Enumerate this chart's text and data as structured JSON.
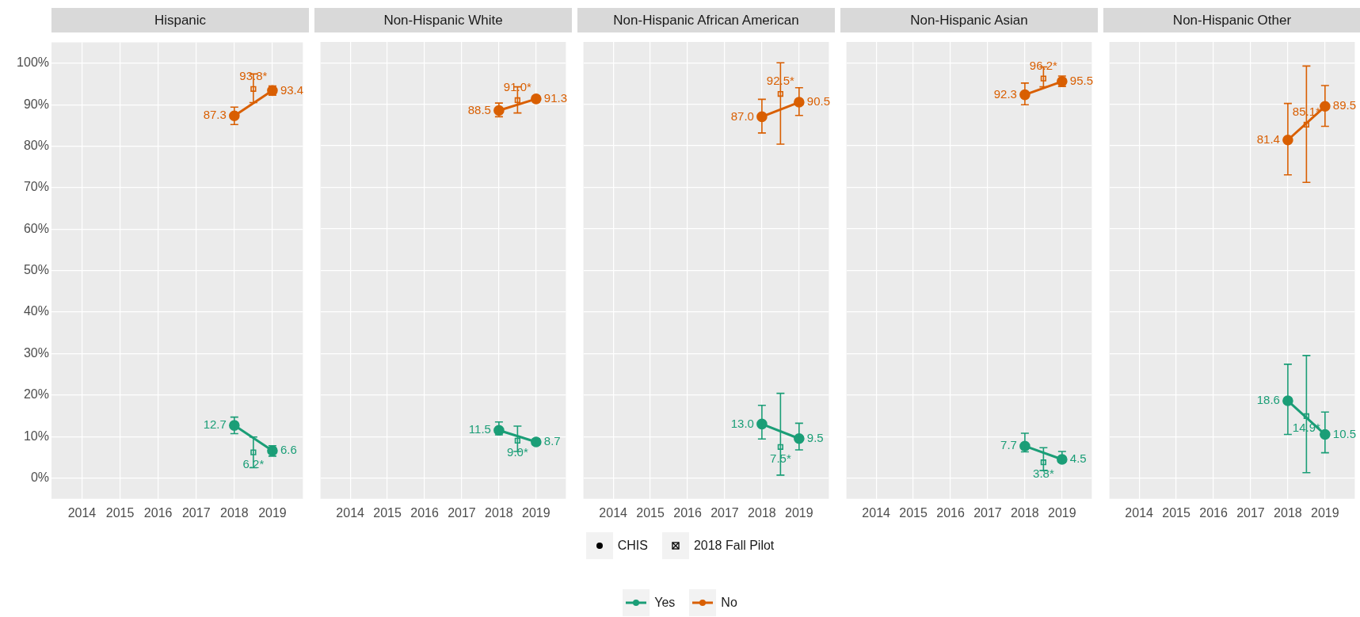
{
  "chart_data": [
    {
      "type": "line",
      "title": "Hispanic",
      "xlim": [
        2013.2,
        2019.8
      ],
      "xticks": [
        2014,
        2015,
        2016,
        2017,
        2018,
        2019
      ],
      "ylim": [
        -5,
        105
      ],
      "yticks": [
        {
          "value": 0,
          "label": "0%"
        },
        {
          "value": 10,
          "label": "10%"
        },
        {
          "value": 20,
          "label": "20%"
        },
        {
          "value": 30,
          "label": "30%"
        },
        {
          "value": 40,
          "label": "40%"
        },
        {
          "value": 50,
          "label": "50%"
        },
        {
          "value": 60,
          "label": "60%"
        },
        {
          "value": 70,
          "label": "70%"
        },
        {
          "value": 80,
          "label": "80%"
        },
        {
          "value": 90,
          "label": "90%"
        },
        {
          "value": 100,
          "label": "100%"
        }
      ],
      "grid": true,
      "marker": "circle",
      "line_style": "solid",
      "legend": "bottom",
      "annotations": [
        "CHIS",
        "2018 Fall Pilot"
      ],
      "series": [
        {
          "name": "Yes",
          "color": "#1b9e77",
          "x": [
            2018,
            2019
          ],
          "values": [
            12.7,
            6.6
          ],
          "errors": [
            [
              10.7,
              14.7
            ],
            [
              5.3,
              7.8
            ]
          ],
          "value_labels": [
            "12.7",
            "6.6"
          ]
        },
        {
          "name": "No",
          "color": "#d95f02",
          "x": [
            2018,
            2019
          ],
          "values": [
            87.3,
            93.4
          ],
          "errors": [
            [
              85.2,
              89.4
            ],
            [
              92.3,
              94.5
            ]
          ],
          "value_labels": [
            "87.3",
            "93.4"
          ]
        },
        {
          "type": "scatter",
          "marker": "square",
          "color": "#1b9e77",
          "x": [
            2018.5
          ],
          "values": [
            6.2
          ],
          "errors": [
            [
              2.5,
              9.9
            ]
          ],
          "value_labels": [
            "6.2*"
          ]
        },
        {
          "type": "scatter",
          "marker": "square",
          "color": "#d95f02",
          "x": [
            2018.5
          ],
          "values": [
            93.8
          ],
          "errors": [
            [
              90.5,
              97.4
            ]
          ],
          "value_labels": [
            "93.8*"
          ]
        }
      ]
    },
    {
      "type": "line",
      "title": "Non-Hispanic White",
      "xlim": [
        2013.2,
        2019.8
      ],
      "xticks": [
        2014,
        2015,
        2016,
        2017,
        2018,
        2019
      ],
      "ylim": [
        -5,
        105
      ],
      "yticks": [
        0,
        10,
        20,
        30,
        40,
        50,
        60,
        70,
        80,
        90,
        100
      ],
      "tick_labels": "x",
      "grid": true,
      "marker": "circle",
      "line_style": "solid",
      "series": [
        {
          "color": "#1b9e77",
          "x": [
            2018,
            2019
          ],
          "values": [
            11.5,
            8.7
          ],
          "errors": [
            [
              10.4,
              13.5
            ],
            [
              8.0,
              9.5
            ]
          ],
          "value_labels": [
            "11.5",
            "8.7"
          ]
        },
        {
          "color": "#d95f02",
          "x": [
            2018,
            2019
          ],
          "values": [
            88.5,
            91.3
          ],
          "errors": [
            [
              87.0,
              90.3
            ],
            [
              90.6,
              92.0
            ]
          ],
          "value_labels": [
            "88.5",
            "91.3"
          ]
        },
        {
          "type": "scatter",
          "marker": "square",
          "color": "#1b9e77",
          "x": [
            2018.5
          ],
          "values": [
            9.0
          ],
          "errors": [
            [
              6.4,
              12.5
            ]
          ],
          "value_labels": [
            "9.0*"
          ]
        },
        {
          "type": "scatter",
          "marker": "square",
          "color": "#d95f02",
          "x": [
            2018.5
          ],
          "values": [
            91.0
          ],
          "errors": [
            [
              87.9,
              94.2
            ]
          ],
          "value_labels": [
            "91.0*"
          ]
        }
      ]
    },
    {
      "type": "line",
      "title": "Non-Hispanic African American",
      "xlim": [
        2013.2,
        2019.8
      ],
      "xticks": [
        2014,
        2015,
        2016,
        2017,
        2018,
        2019
      ],
      "ylim": [
        -5,
        105
      ],
      "yticks": [
        0,
        10,
        20,
        30,
        40,
        50,
        60,
        70,
        80,
        90,
        100
      ],
      "tick_labels": "x",
      "grid": true,
      "marker": "circle",
      "line_style": "solid",
      "series": [
        {
          "color": "#1b9e77",
          "x": [
            2018,
            2019
          ],
          "values": [
            13.0,
            9.5
          ],
          "errors": [
            [
              9.4,
              17.5
            ],
            [
              6.8,
              13.2
            ]
          ],
          "value_labels": [
            "13.0",
            "9.5"
          ]
        },
        {
          "color": "#d95f02",
          "x": [
            2018,
            2019
          ],
          "values": [
            87.0,
            90.5
          ],
          "errors": [
            [
              83.1,
              91.2
            ],
            [
              87.3,
              94.0
            ]
          ],
          "value_labels": [
            "87.0",
            "90.5"
          ]
        },
        {
          "type": "scatter",
          "marker": "square",
          "color": "#1b9e77",
          "x": [
            2018.5
          ],
          "values": [
            7.5
          ],
          "errors": [
            [
              0.7,
              20.4
            ]
          ],
          "value_labels": [
            "7.5*"
          ]
        },
        {
          "type": "scatter",
          "marker": "square",
          "color": "#d95f02",
          "x": [
            2018.5
          ],
          "values": [
            92.5
          ],
          "errors": [
            [
              80.4,
              100.0
            ]
          ],
          "value_labels": [
            "92.5*"
          ]
        }
      ]
    },
    {
      "type": "line",
      "title": "Non-Hispanic Asian",
      "xlim": [
        2013.2,
        2019.8
      ],
      "xticks": [
        2014,
        2015,
        2016,
        2017,
        2018,
        2019
      ],
      "ylim": [
        -5,
        105
      ],
      "yticks": [
        0,
        10,
        20,
        30,
        40,
        50,
        60,
        70,
        80,
        90,
        100
      ],
      "tick_labels": "x",
      "grid": true,
      "marker": "circle",
      "line_style": "solid",
      "series": [
        {
          "color": "#1b9e77",
          "x": [
            2018,
            2019
          ],
          "values": [
            7.7,
            4.5
          ],
          "errors": [
            [
              6.3,
              10.8
            ],
            [
              3.7,
              6.4
            ]
          ],
          "value_labels": [
            "7.7",
            "4.5"
          ]
        },
        {
          "color": "#d95f02",
          "x": [
            2018,
            2019
          ],
          "values": [
            92.3,
            95.5
          ],
          "errors": [
            [
              89.9,
              95.1
            ],
            [
              94.3,
              96.8
            ]
          ],
          "value_labels": [
            "92.3",
            "95.5"
          ]
        },
        {
          "type": "scatter",
          "marker": "square",
          "color": "#1b9e77",
          "x": [
            2018.5
          ],
          "values": [
            3.8
          ],
          "errors": [
            [
              1.8,
              7.3
            ]
          ],
          "value_labels": [
            "3.8*"
          ]
        },
        {
          "type": "scatter",
          "marker": "square",
          "color": "#d95f02",
          "x": [
            2018.5
          ],
          "values": [
            96.2
          ],
          "errors": [
            [
              94.2,
              99.0
            ]
          ],
          "value_labels": [
            "96.2*"
          ]
        }
      ]
    },
    {
      "type": "line",
      "title": "Non-Hispanic Other",
      "xlim": [
        2013.2,
        2019.8
      ],
      "xticks": [
        2014,
        2015,
        2016,
        2017,
        2018,
        2019
      ],
      "ylim": [
        -5,
        105
      ],
      "yticks": [
        0,
        10,
        20,
        30,
        40,
        50,
        60,
        70,
        80,
        90,
        100
      ],
      "tick_labels": "x",
      "grid": true,
      "marker": "circle",
      "line_style": "solid",
      "series": [
        {
          "color": "#1b9e77",
          "x": [
            2018,
            2019
          ],
          "values": [
            18.6,
            10.5
          ],
          "errors": [
            [
              10.5,
              27.4
            ],
            [
              6.1,
              15.9
            ]
          ],
          "value_labels": [
            "18.6",
            "10.5"
          ]
        },
        {
          "color": "#d95f02",
          "x": [
            2018,
            2019
          ],
          "values": [
            81.4,
            89.5
          ],
          "errors": [
            [
              73.0,
              90.2
            ],
            [
              84.7,
              94.5
            ]
          ],
          "value_labels": [
            "81.4",
            "89.5"
          ]
        },
        {
          "type": "scatter",
          "marker": "square",
          "color": "#1b9e77",
          "x": [
            2018.5
          ],
          "values": [
            14.9
          ],
          "errors": [
            [
              1.3,
              29.5
            ]
          ],
          "value_labels": [
            "14.9*"
          ]
        },
        {
          "type": "scatter",
          "marker": "square",
          "color": "#d95f02",
          "x": [
            2018.5
          ],
          "values": [
            85.1
          ],
          "errors": [
            [
              71.2,
              99.2
            ]
          ],
          "value_labels": [
            "85.1*"
          ]
        }
      ]
    }
  ]
}
